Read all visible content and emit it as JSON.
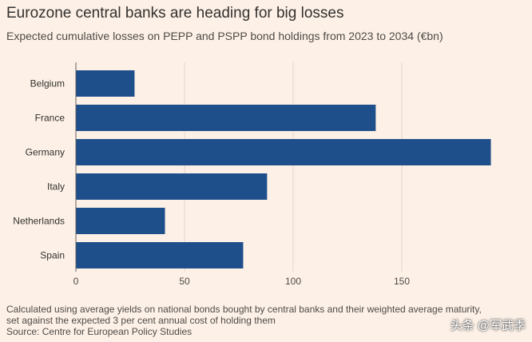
{
  "header": {
    "title": "Eurozone central banks are heading for big losses",
    "subtitle": "Expected cumulative losses on PEPP and PSPP bond holdings from 2023 to 2034 (€bn)"
  },
  "footer": {
    "note_line1": "Calculated using average yields on national bonds bought by central banks and their weighted average maturity,",
    "note_line2": "set against the expected 3 per cent annual cost of holding them",
    "source": "Source: Centre for European Policy Studies",
    "watermark": "头条 @军武季"
  },
  "colors": {
    "bar": "#1f4f8b",
    "grid": "#e3d6cc",
    "axis": "#66605c",
    "background": "#fdf1e7"
  },
  "chart_data": {
    "type": "bar",
    "orientation": "horizontal",
    "title": "Eurozone central banks are heading for big losses",
    "subtitle": "Expected cumulative losses on PEPP and PSPP bond holdings from 2023 to 2034 (€bn)",
    "categories": [
      "Belgium",
      "France",
      "Germany",
      "Italy",
      "Netherlands",
      "Spain"
    ],
    "values": [
      27,
      138,
      191,
      88,
      41,
      77
    ],
    "xlim": [
      0,
      191
    ],
    "xticks": [
      0,
      50,
      100,
      150
    ],
    "xlabel": "",
    "ylabel": "",
    "grid": true,
    "legend": "none"
  }
}
